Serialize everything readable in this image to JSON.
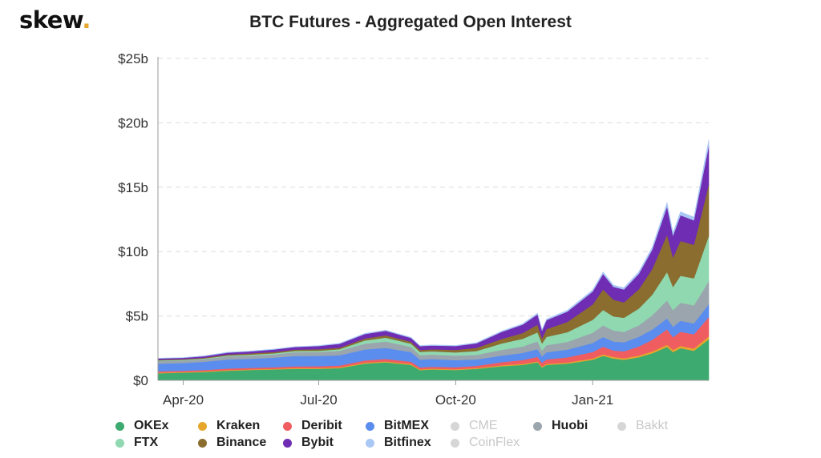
{
  "brand": {
    "name": "skew",
    "dot": "."
  },
  "chart_data": {
    "type": "area",
    "stacked": true,
    "title": "BTC Futures - Aggregated Open Interest",
    "xlabel": "",
    "ylabel": "",
    "y_tick_labels": [
      "$0",
      "$5b",
      "$10b",
      "$15b",
      "$20b",
      "$25b"
    ],
    "y_tick_values": [
      0,
      5,
      10,
      15,
      20,
      25
    ],
    "ylim": [
      0,
      25
    ],
    "x_tick_labels": [
      "Apr-20",
      "Jul-20",
      "Oct-20",
      "Jan-21"
    ],
    "x_tick_dates": [
      "2020-04-01",
      "2020-07-01",
      "2020-10-01",
      "2021-01-01"
    ],
    "x_range": [
      "2020-03-15",
      "2021-03-20"
    ],
    "grid": "horizontal dashed",
    "legend_position": "bottom",
    "unit": "USD billions",
    "x": [
      "2020-03-15",
      "2020-04-01",
      "2020-04-15",
      "2020-05-01",
      "2020-05-15",
      "2020-06-01",
      "2020-06-15",
      "2020-07-01",
      "2020-07-15",
      "2020-08-01",
      "2020-08-15",
      "2020-09-01",
      "2020-09-07",
      "2020-09-15",
      "2020-10-01",
      "2020-10-15",
      "2020-11-01",
      "2020-11-15",
      "2020-11-25",
      "2020-11-28",
      "2020-12-01",
      "2020-12-15",
      "2021-01-01",
      "2021-01-08",
      "2021-01-15",
      "2021-01-22",
      "2021-02-01",
      "2021-02-10",
      "2021-02-20",
      "2021-02-24",
      "2021-03-01",
      "2021-03-10",
      "2021-03-20"
    ],
    "series": [
      {
        "name": "OKEx",
        "color": "#3daa6f",
        "active": true,
        "values": [
          0.55,
          0.6,
          0.65,
          0.75,
          0.8,
          0.85,
          0.9,
          0.9,
          0.95,
          1.3,
          1.4,
          1.2,
          0.8,
          0.85,
          0.8,
          0.9,
          1.1,
          1.2,
          1.4,
          1.0,
          1.2,
          1.3,
          1.6,
          1.9,
          1.7,
          1.6,
          1.8,
          2.1,
          2.6,
          2.2,
          2.5,
          2.3,
          3.2
        ]
      },
      {
        "name": "Kraken",
        "color": "#e6a62c",
        "active": true,
        "values": [
          0.05,
          0.05,
          0.05,
          0.05,
          0.05,
          0.05,
          0.06,
          0.06,
          0.06,
          0.07,
          0.07,
          0.07,
          0.06,
          0.06,
          0.06,
          0.06,
          0.07,
          0.08,
          0.08,
          0.07,
          0.08,
          0.09,
          0.1,
          0.12,
          0.12,
          0.11,
          0.13,
          0.15,
          0.17,
          0.16,
          0.18,
          0.18,
          0.22
        ]
      },
      {
        "name": "Deribit",
        "color": "#ef5d60",
        "active": true,
        "values": [
          0.1,
          0.1,
          0.1,
          0.12,
          0.12,
          0.12,
          0.13,
          0.14,
          0.14,
          0.18,
          0.2,
          0.18,
          0.15,
          0.15,
          0.16,
          0.17,
          0.25,
          0.3,
          0.35,
          0.3,
          0.35,
          0.4,
          0.5,
          0.6,
          0.5,
          0.55,
          0.7,
          0.9,
          1.2,
          1.0,
          1.1,
          1.1,
          1.5
        ]
      },
      {
        "name": "BitMEX",
        "color": "#5b8def",
        "active": true,
        "values": [
          0.6,
          0.6,
          0.65,
          0.7,
          0.7,
          0.75,
          0.8,
          0.8,
          0.8,
          0.85,
          0.85,
          0.75,
          0.6,
          0.6,
          0.55,
          0.5,
          0.5,
          0.55,
          0.6,
          0.5,
          0.55,
          0.6,
          0.7,
          0.75,
          0.7,
          0.7,
          0.75,
          0.8,
          0.85,
          0.8,
          0.85,
          0.85,
          1.0
        ]
      },
      {
        "name": "CME",
        "color": "#d6d6d6",
        "active": false,
        "values": [
          0,
          0,
          0,
          0,
          0,
          0,
          0,
          0,
          0,
          0,
          0,
          0,
          0,
          0,
          0,
          0,
          0,
          0,
          0,
          0,
          0,
          0,
          0,
          0,
          0,
          0,
          0,
          0,
          0,
          0,
          0,
          0,
          0
        ]
      },
      {
        "name": "Huobi",
        "color": "#9aa5ad",
        "active": true,
        "values": [
          0.2,
          0.2,
          0.2,
          0.25,
          0.25,
          0.25,
          0.3,
          0.3,
          0.35,
          0.45,
          0.5,
          0.4,
          0.35,
          0.35,
          0.35,
          0.35,
          0.45,
          0.5,
          0.6,
          0.45,
          0.55,
          0.6,
          0.8,
          0.9,
          0.85,
          0.8,
          0.9,
          1.1,
          1.4,
          1.3,
          1.4,
          1.4,
          1.8
        ]
      },
      {
        "name": "Bakkt",
        "color": "#d6d6d6",
        "active": false,
        "values": [
          0,
          0,
          0,
          0,
          0,
          0,
          0,
          0,
          0,
          0,
          0,
          0,
          0,
          0,
          0,
          0,
          0,
          0,
          0,
          0,
          0,
          0,
          0,
          0,
          0,
          0,
          0,
          0,
          0,
          0,
          0,
          0,
          0
        ]
      },
      {
        "name": "FTX",
        "color": "#8fd8b0",
        "active": true,
        "values": [
          0.05,
          0.05,
          0.05,
          0.06,
          0.07,
          0.08,
          0.1,
          0.1,
          0.12,
          0.25,
          0.3,
          0.25,
          0.25,
          0.25,
          0.25,
          0.3,
          0.5,
          0.6,
          0.7,
          0.55,
          0.65,
          0.75,
          1.0,
          1.2,
          1.1,
          1.1,
          1.3,
          1.6,
          2.2,
          1.8,
          2.1,
          2.1,
          3.5
        ]
      },
      {
        "name": "Binance",
        "color": "#8a6d2f",
        "active": true,
        "values": [
          0.05,
          0.05,
          0.06,
          0.08,
          0.1,
          0.1,
          0.1,
          0.12,
          0.12,
          0.15,
          0.18,
          0.15,
          0.15,
          0.15,
          0.2,
          0.25,
          0.35,
          0.45,
          0.6,
          0.4,
          0.6,
          0.8,
          1.2,
          1.6,
          1.3,
          1.2,
          1.5,
          2.0,
          2.9,
          2.3,
          2.7,
          2.6,
          4.0
        ]
      },
      {
        "name": "Bybit",
        "color": "#6f2db3",
        "active": true,
        "values": [
          0.1,
          0.1,
          0.12,
          0.15,
          0.15,
          0.2,
          0.2,
          0.25,
          0.3,
          0.35,
          0.35,
          0.3,
          0.3,
          0.3,
          0.3,
          0.35,
          0.55,
          0.65,
          0.8,
          0.6,
          0.7,
          0.8,
          1.0,
          1.2,
          1.0,
          1.0,
          1.2,
          1.5,
          2.2,
          1.7,
          2.0,
          1.9,
          3.0
        ]
      },
      {
        "name": "Bitfinex",
        "color": "#a9c8f5",
        "active": true,
        "values": [
          0.02,
          0.02,
          0.02,
          0.03,
          0.03,
          0.03,
          0.03,
          0.03,
          0.04,
          0.05,
          0.05,
          0.04,
          0.04,
          0.04,
          0.04,
          0.05,
          0.06,
          0.07,
          0.09,
          0.07,
          0.08,
          0.1,
          0.12,
          0.15,
          0.13,
          0.13,
          0.15,
          0.18,
          0.28,
          0.22,
          0.26,
          0.25,
          0.45
        ]
      },
      {
        "name": "CoinFlex",
        "color": "#d6d6d6",
        "active": false,
        "values": [
          0,
          0,
          0,
          0,
          0,
          0,
          0,
          0,
          0,
          0,
          0,
          0,
          0,
          0,
          0,
          0,
          0,
          0,
          0,
          0,
          0,
          0,
          0,
          0,
          0,
          0,
          0,
          0,
          0,
          0,
          0,
          0,
          0
        ]
      }
    ]
  },
  "legend_layout": [
    [
      "OKEx",
      "Kraken",
      "Deribit",
      "BitMEX",
      "CME",
      "Huobi",
      "Bakkt"
    ],
    [
      "FTX",
      "Binance",
      "Bybit",
      "Bitfinex",
      "CoinFlex"
    ]
  ]
}
